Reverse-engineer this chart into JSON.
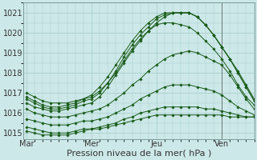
{
  "bg_color": "#cde8e8",
  "grid_color": "#aad0d0",
  "line_color": "#1a5c1a",
  "marker_color": "#1a5c1a",
  "xlabel": "Pression niveau de la mer( hPa )",
  "xlabel_fontsize": 8,
  "ytick_labels": [
    1015,
    1016,
    1017,
    1018,
    1019,
    1020,
    1021
  ],
  "xtick_labels": [
    "Mar",
    "Mer",
    "Jeu",
    "Ven"
  ],
  "xtick_positions": [
    0,
    48,
    96,
    144
  ],
  "ylim": [
    1014.7,
    1021.5
  ],
  "xlim": [
    -2,
    168
  ],
  "series": [
    {
      "x": [
        0,
        6,
        12,
        18,
        24,
        30,
        36,
        42,
        48,
        54,
        60,
        66,
        72,
        78,
        84,
        90,
        96,
        102,
        108,
        114,
        120,
        126,
        132,
        138,
        144,
        150,
        156,
        162,
        168
      ],
      "y": [
        1017.0,
        1016.8,
        1016.6,
        1016.5,
        1016.5,
        1016.5,
        1016.6,
        1016.7,
        1016.8,
        1017.1,
        1017.5,
        1018.0,
        1018.6,
        1019.2,
        1019.7,
        1020.1,
        1020.4,
        1020.5,
        1020.5,
        1020.4,
        1020.3,
        1020.0,
        1019.6,
        1019.2,
        1018.7,
        1018.1,
        1017.4,
        1016.8,
        1016.4
      ]
    },
    {
      "x": [
        0,
        6,
        12,
        18,
        24,
        30,
        36,
        42,
        48,
        54,
        60,
        66,
        72,
        78,
        84,
        90,
        96,
        102,
        108,
        114,
        120,
        126,
        132,
        138,
        144,
        150,
        156,
        162,
        168
      ],
      "y": [
        1016.5,
        1016.3,
        1016.2,
        1016.1,
        1016.1,
        1016.2,
        1016.3,
        1016.4,
        1016.5,
        1016.8,
        1017.3,
        1017.9,
        1018.5,
        1019.1,
        1019.6,
        1020.1,
        1020.5,
        1020.8,
        1021.0,
        1021.0,
        1021.0,
        1020.8,
        1020.4,
        1019.9,
        1019.3,
        1018.7,
        1018.0,
        1017.3,
        1016.6
      ]
    },
    {
      "x": [
        0,
        6,
        12,
        18,
        24,
        30,
        36,
        42,
        48,
        54,
        60,
        66,
        72,
        78,
        84,
        90,
        96,
        102,
        108,
        114,
        120,
        126,
        132,
        138,
        144,
        150,
        156,
        162,
        168
      ],
      "y": [
        1016.7,
        1016.5,
        1016.3,
        1016.2,
        1016.2,
        1016.3,
        1016.4,
        1016.6,
        1016.7,
        1017.0,
        1017.5,
        1018.1,
        1018.8,
        1019.4,
        1019.9,
        1020.3,
        1020.7,
        1020.9,
        1021.0,
        1021.0,
        1021.0,
        1020.8,
        1020.4,
        1019.9,
        1019.3,
        1018.7,
        1018.1,
        1017.4,
        1016.7
      ]
    },
    {
      "x": [
        0,
        6,
        12,
        18,
        24,
        30,
        36,
        42,
        48,
        54,
        60,
        66,
        72,
        78,
        84,
        90,
        96,
        102,
        108,
        114,
        120,
        126,
        132,
        138,
        144,
        150,
        156,
        162,
        168
      ],
      "y": [
        1016.2,
        1016.0,
        1015.9,
        1015.8,
        1015.8,
        1015.8,
        1015.9,
        1016.0,
        1016.1,
        1016.2,
        1016.4,
        1016.7,
        1017.0,
        1017.4,
        1017.7,
        1018.1,
        1018.4,
        1018.7,
        1018.9,
        1019.0,
        1019.1,
        1019.0,
        1018.8,
        1018.6,
        1018.4,
        1017.9,
        1017.3,
        1016.7,
        1016.2
      ]
    },
    {
      "x": [
        0,
        6,
        12,
        18,
        24,
        30,
        36,
        42,
        48,
        54,
        60,
        66,
        72,
        78,
        84,
        90,
        96,
        102,
        108,
        114,
        120,
        126,
        132,
        138,
        144,
        150,
        156,
        162,
        168
      ],
      "y": [
        1015.7,
        1015.6,
        1015.5,
        1015.4,
        1015.4,
        1015.4,
        1015.5,
        1015.6,
        1015.6,
        1015.7,
        1015.8,
        1016.0,
        1016.2,
        1016.4,
        1016.7,
        1016.9,
        1017.1,
        1017.3,
        1017.4,
        1017.4,
        1017.4,
        1017.3,
        1017.2,
        1017.1,
        1016.9,
        1016.6,
        1016.3,
        1016.1,
        1015.9
      ]
    },
    {
      "x": [
        0,
        6,
        12,
        18,
        24,
        30,
        36,
        42,
        48,
        54,
        60,
        66,
        72,
        78,
        84,
        90,
        96,
        102,
        108,
        114,
        120,
        126,
        132,
        138,
        144,
        150,
        156,
        162,
        168
      ],
      "y": [
        1015.3,
        1015.2,
        1015.1,
        1015.0,
        1015.0,
        1015.0,
        1015.1,
        1015.2,
        1015.2,
        1015.3,
        1015.4,
        1015.5,
        1015.7,
        1015.8,
        1016.0,
        1016.1,
        1016.2,
        1016.3,
        1016.3,
        1016.3,
        1016.3,
        1016.3,
        1016.2,
        1016.2,
        1016.1,
        1016.0,
        1015.9,
        1015.8,
        1015.8
      ]
    },
    {
      "x": [
        0,
        6,
        12,
        18,
        24,
        30,
        36,
        42,
        48,
        54,
        60,
        66,
        72,
        78,
        84,
        90,
        96,
        102,
        108,
        114,
        120,
        126,
        132,
        138,
        144,
        150,
        156,
        162,
        168
      ],
      "y": [
        1015.1,
        1015.0,
        1014.9,
        1014.9,
        1014.9,
        1014.9,
        1015.0,
        1015.1,
        1015.2,
        1015.2,
        1015.3,
        1015.4,
        1015.5,
        1015.6,
        1015.7,
        1015.8,
        1015.9,
        1015.9,
        1015.9,
        1015.9,
        1015.9,
        1015.9,
        1015.9,
        1015.9,
        1015.9,
        1015.8,
        1015.8,
        1015.8,
        1015.8
      ]
    },
    {
      "x": [
        0,
        6,
        12,
        18,
        24,
        30,
        36,
        42,
        48,
        54,
        60,
        66,
        72,
        78,
        84,
        90,
        96,
        102,
        108,
        114,
        120,
        126,
        132,
        138,
        144,
        150,
        156,
        162,
        168
      ],
      "y": [
        1016.8,
        1016.6,
        1016.4,
        1016.3,
        1016.3,
        1016.4,
        1016.5,
        1016.7,
        1016.9,
        1017.3,
        1017.8,
        1018.4,
        1019.0,
        1019.6,
        1020.1,
        1020.5,
        1020.8,
        1021.0,
        1021.0,
        1021.0,
        1021.0,
        1020.8,
        1020.4,
        1019.9,
        1019.3,
        1018.7,
        1018.0,
        1017.3,
        1016.6
      ]
    }
  ]
}
